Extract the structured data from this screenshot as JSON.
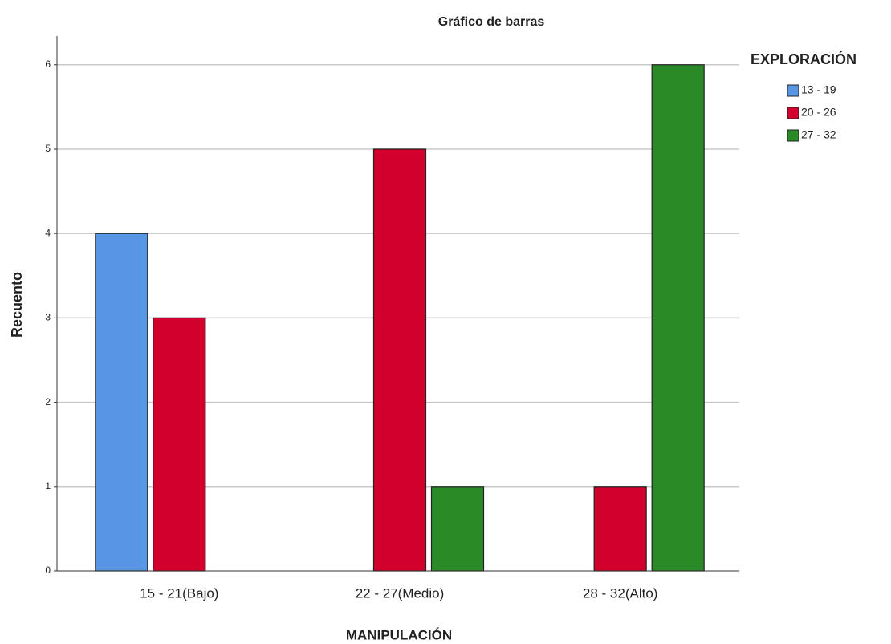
{
  "chart_data": {
    "type": "bar",
    "title": "Gráfico de barras",
    "x_label": "MANIPULACIÓN",
    "y_label": "Recuento",
    "legend_title": "EXPLORACIÓN",
    "legend_position": "right",
    "grid": true,
    "categories": [
      "15 - 21(Bajo)",
      "22 - 27(Medio)",
      "28 - 32(Alto)"
    ],
    "series": [
      {
        "name": "13 - 19",
        "color": "#5895e5",
        "values": [
          4,
          0,
          0
        ]
      },
      {
        "name": "20 - 26",
        "color": "#d2002c",
        "values": [
          3,
          5,
          1
        ]
      },
      {
        "name": "27 - 32",
        "color": "#298a26",
        "values": [
          0,
          1,
          6
        ]
      }
    ],
    "ylim": [
      0,
      6.34
    ],
    "yticks": [
      0,
      1,
      2,
      3,
      4,
      5,
      6
    ]
  }
}
